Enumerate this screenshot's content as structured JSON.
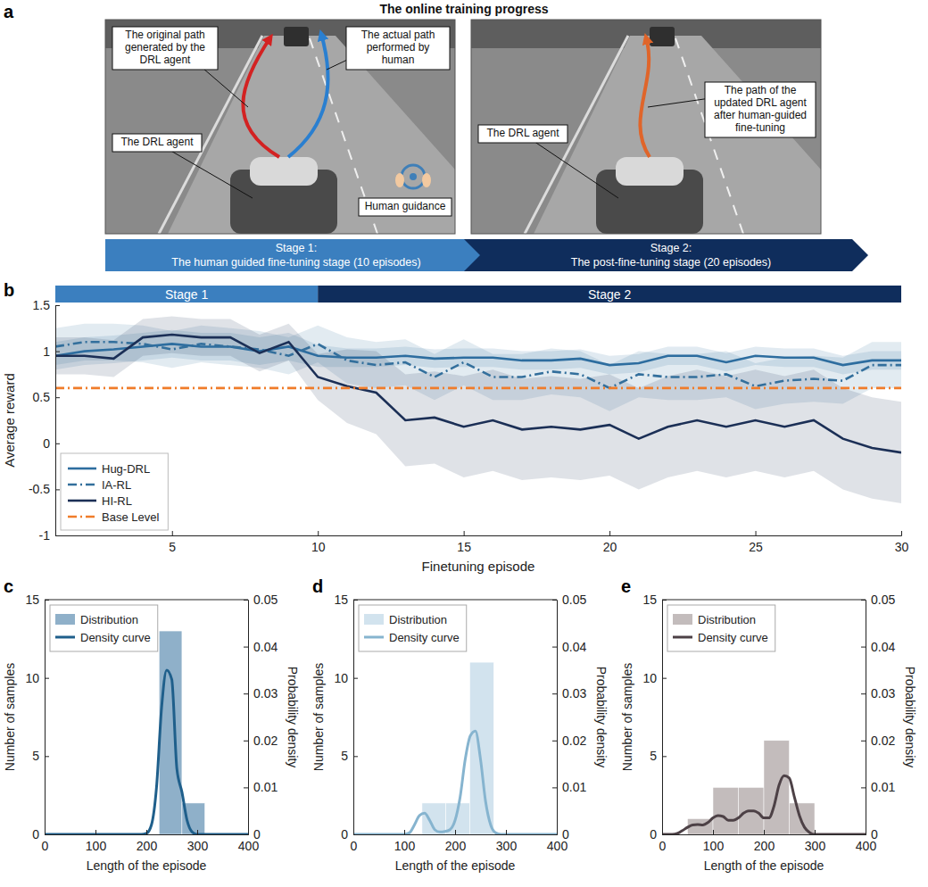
{
  "panel_a": {
    "label": "a",
    "title": "The online training progress",
    "left_photo": {
      "labels": [
        "The original path generated by the DRL agent",
        "The actual path performed by human",
        "The DRL agent",
        "Human guidance"
      ]
    },
    "right_photo": {
      "labels": [
        "The path of the updated DRL agent after human-guided fine-tuning",
        "The DRL agent"
      ]
    },
    "stages": [
      {
        "title": "Stage 1:",
        "text": "The human guided fine-tuning stage (10 episodes)",
        "color": "#3b7fbf"
      },
      {
        "title": "Stage 2:",
        "text": "The post-fine-tuning stage (20 episodes)",
        "color": "#0f2d5c"
      }
    ]
  },
  "chart_data": [
    {
      "type": "line",
      "panel_label": "b",
      "xlabel": "Finetuning episode",
      "ylabel": "Average reward",
      "x": [
        1,
        2,
        3,
        4,
        5,
        6,
        7,
        8,
        9,
        10,
        11,
        12,
        13,
        14,
        15,
        16,
        17,
        18,
        19,
        20,
        21,
        22,
        23,
        24,
        25,
        26,
        27,
        28,
        29,
        30
      ],
      "xlim": [
        1,
        30
      ],
      "xticks": [
        5,
        10,
        15,
        20,
        25,
        30
      ],
      "ylim": [
        -1,
        1.5
      ],
      "yticks": [
        -1,
        -0.5,
        0,
        0.5,
        1,
        1.5
      ],
      "legend": "lower left",
      "stages": [
        {
          "label": "Stage 1",
          "start": 1,
          "end": 10,
          "color": "#3b7fbf"
        },
        {
          "label": "Stage 2",
          "start": 10,
          "end": 30,
          "color": "#0f2d5c"
        }
      ],
      "series": [
        {
          "name": "Hug-DRL",
          "color": "#2d6d9f",
          "line_style": "solid",
          "values": [
            0.95,
            1.0,
            1.02,
            1.05,
            1.08,
            1.05,
            1.05,
            1.0,
            1.05,
            0.95,
            0.93,
            0.93,
            0.95,
            0.92,
            0.93,
            0.93,
            0.9,
            0.9,
            0.92,
            0.85,
            0.87,
            0.95,
            0.95,
            0.88,
            0.95,
            0.93,
            0.93,
            0.85,
            0.9,
            0.9
          ],
          "errors": [
            0.15,
            0.15,
            0.15,
            0.15,
            0.15,
            0.15,
            0.15,
            0.15,
            0.15,
            0.12,
            0.1,
            0.1,
            0.1,
            0.1,
            0.1,
            0.1,
            0.1,
            0.1,
            0.1,
            0.1,
            0.1,
            0.1,
            0.1,
            0.1,
            0.1,
            0.1,
            0.1,
            0.1,
            0.1,
            0.1
          ]
        },
        {
          "name": "IA-RL",
          "color": "#336f9c",
          "line_style": "dashdot",
          "values": [
            1.05,
            1.1,
            1.1,
            1.08,
            1.02,
            1.08,
            1.05,
            1.02,
            0.95,
            1.08,
            0.9,
            0.85,
            0.88,
            0.72,
            0.88,
            0.72,
            0.72,
            0.78,
            0.75,
            0.6,
            0.75,
            0.72,
            0.72,
            0.75,
            0.62,
            0.68,
            0.7,
            0.68,
            0.85,
            0.85
          ],
          "errors": [
            0.2,
            0.2,
            0.2,
            0.2,
            0.2,
            0.2,
            0.2,
            0.2,
            0.2,
            0.2,
            0.25,
            0.25,
            0.25,
            0.25,
            0.25,
            0.25,
            0.25,
            0.25,
            0.25,
            0.25,
            0.25,
            0.25,
            0.25,
            0.25,
            0.25,
            0.25,
            0.25,
            0.25,
            0.25,
            0.25
          ]
        },
        {
          "name": "HI-RL",
          "color": "#1b2f56",
          "line_style": "solid",
          "values": [
            0.95,
            0.95,
            0.92,
            1.15,
            1.18,
            1.15,
            1.15,
            0.98,
            1.1,
            0.72,
            0.62,
            0.55,
            0.25,
            0.28,
            0.18,
            0.25,
            0.15,
            0.18,
            0.15,
            0.2,
            0.05,
            0.18,
            0.25,
            0.18,
            0.25,
            0.18,
            0.25,
            0.05,
            -0.05,
            -0.1
          ],
          "errors": [
            0.2,
            0.2,
            0.2,
            0.2,
            0.2,
            0.2,
            0.2,
            0.2,
            0.2,
            0.25,
            0.4,
            0.45,
            0.5,
            0.5,
            0.55,
            0.55,
            0.55,
            0.55,
            0.55,
            0.55,
            0.55,
            0.55,
            0.55,
            0.55,
            0.55,
            0.55,
            0.55,
            0.55,
            0.55,
            0.55
          ]
        },
        {
          "name": "Base Level",
          "color": "#f07c2a",
          "line_style": "dashdot",
          "values": [
            0.6,
            0.6,
            0.6,
            0.6,
            0.6,
            0.6,
            0.6,
            0.6,
            0.6,
            0.6,
            0.6,
            0.6,
            0.6,
            0.6,
            0.6,
            0.6,
            0.6,
            0.6,
            0.6,
            0.6,
            0.6,
            0.6,
            0.6,
            0.6,
            0.6,
            0.6,
            0.6,
            0.6,
            0.6,
            0.6
          ]
        }
      ]
    },
    {
      "type": "histogram",
      "panel_label": "c",
      "xlabel": "Length of the episode",
      "ylabel": "Number of samples",
      "y2label": "Probability density",
      "xlim": [
        0,
        400
      ],
      "xticks": [
        0,
        100,
        200,
        300,
        400
      ],
      "ylim": [
        0,
        15
      ],
      "yticks": [
        0,
        5,
        10,
        15
      ],
      "y2lim": [
        0,
        0.05
      ],
      "y2ticks": [
        0,
        0.01,
        0.02,
        0.03,
        0.04,
        0.05
      ],
      "legend": "upper left",
      "series": [
        {
          "name": "Distribution",
          "type": "bar",
          "color": "#8fb0c9",
          "bins": [
            225,
            270,
            315
          ],
          "values": [
            13,
            2
          ]
        },
        {
          "name": "Density curve",
          "type": "line",
          "axis": "y2",
          "color": "#1f5f8b",
          "x": [
            0,
            10,
            20,
            30,
            40,
            50,
            60,
            70,
            80,
            90,
            100,
            110,
            120,
            130,
            140,
            150,
            160,
            170,
            180,
            190,
            200,
            210,
            220,
            230,
            240,
            250,
            260,
            270,
            280,
            290,
            300,
            310,
            320,
            330,
            340,
            350,
            360,
            370,
            380,
            390,
            400
          ],
          "values": [
            0,
            0,
            0,
            0,
            0,
            0,
            0,
            0,
            0,
            0,
            0,
            0,
            0,
            0,
            0,
            0,
            0,
            0,
            0,
            0,
            0.0002,
            0.002,
            0.01,
            0.027,
            0.035,
            0.033,
            0.014,
            0.009,
            0.003,
            0.0005,
            0,
            0,
            0,
            0,
            0,
            0,
            0,
            0,
            0,
            0,
            0
          ]
        }
      ]
    },
    {
      "type": "histogram",
      "panel_label": "d",
      "xlabel": "Length of the episode",
      "ylabel": "Number of samples",
      "y2label": "Probability density",
      "xlim": [
        0,
        400
      ],
      "xticks": [
        0,
        100,
        200,
        300,
        400
      ],
      "ylim": [
        0,
        15
      ],
      "yticks": [
        0,
        5,
        10,
        15
      ],
      "y2lim": [
        0,
        0.05
      ],
      "y2ticks": [
        0,
        0.01,
        0.02,
        0.03,
        0.04,
        0.05
      ],
      "legend": "upper left",
      "series": [
        {
          "name": "Distribution",
          "type": "bar",
          "color": "#d2e3ee",
          "bins": [
            135,
            182,
            229,
            276
          ],
          "values": [
            2,
            2,
            11
          ]
        },
        {
          "name": "Density curve",
          "type": "line",
          "axis": "y2",
          "color": "#86b4cf",
          "x": [
            0,
            10,
            20,
            30,
            40,
            50,
            60,
            70,
            80,
            90,
            100,
            110,
            120,
            130,
            140,
            150,
            160,
            170,
            180,
            190,
            200,
            210,
            220,
            230,
            240,
            250,
            260,
            270,
            280,
            290,
            300,
            310,
            320,
            330,
            340,
            350,
            360,
            370,
            380,
            390,
            400
          ],
          "values": [
            0,
            0,
            0,
            0,
            0,
            0,
            0,
            0,
            0,
            0,
            0,
            0.0003,
            0.002,
            0.004,
            0.0045,
            0.003,
            0.001,
            0.0005,
            0.0006,
            0.001,
            0.003,
            0.008,
            0.016,
            0.021,
            0.022,
            0.016,
            0.007,
            0.002,
            0.0003,
            0,
            0,
            0,
            0,
            0,
            0,
            0,
            0,
            0,
            0,
            0,
            0
          ]
        }
      ]
    },
    {
      "type": "histogram",
      "panel_label": "e",
      "xlabel": "Length of the episode",
      "ylabel": "Number of samples",
      "y2label": "Probability density",
      "xlim": [
        0,
        400
      ],
      "xticks": [
        0,
        100,
        200,
        300,
        400
      ],
      "ylim": [
        0,
        15
      ],
      "yticks": [
        0,
        5,
        10,
        15
      ],
      "y2lim": [
        0,
        0.05
      ],
      "y2ticks": [
        0,
        0.01,
        0.02,
        0.03,
        0.04,
        0.05
      ],
      "legend": "upper left",
      "series": [
        {
          "name": "Distribution",
          "type": "bar",
          "color": "#c3bcbc",
          "bins": [
            50,
            100,
            150,
            200,
            250,
            300
          ],
          "values": [
            1,
            3,
            3,
            6,
            2
          ]
        },
        {
          "name": "Density curve",
          "type": "line",
          "axis": "y2",
          "color": "#4d4146",
          "x": [
            0,
            10,
            20,
            30,
            40,
            50,
            60,
            70,
            80,
            90,
            100,
            110,
            120,
            130,
            140,
            150,
            160,
            170,
            180,
            190,
            200,
            210,
            220,
            230,
            240,
            250,
            260,
            270,
            280,
            290,
            300,
            310,
            320,
            330,
            340,
            350,
            360,
            370,
            380,
            390,
            400
          ],
          "values": [
            0,
            0,
            0,
            0.0002,
            0.0008,
            0.0015,
            0.002,
            0.0021,
            0.002,
            0.0025,
            0.0035,
            0.004,
            0.0038,
            0.003,
            0.003,
            0.0035,
            0.0045,
            0.005,
            0.005,
            0.0045,
            0.0035,
            0.0035,
            0.006,
            0.0105,
            0.0125,
            0.012,
            0.008,
            0.004,
            0.0015,
            0.0004,
            0,
            0,
            0,
            0,
            0,
            0,
            0,
            0,
            0,
            0,
            0
          ]
        }
      ]
    }
  ]
}
